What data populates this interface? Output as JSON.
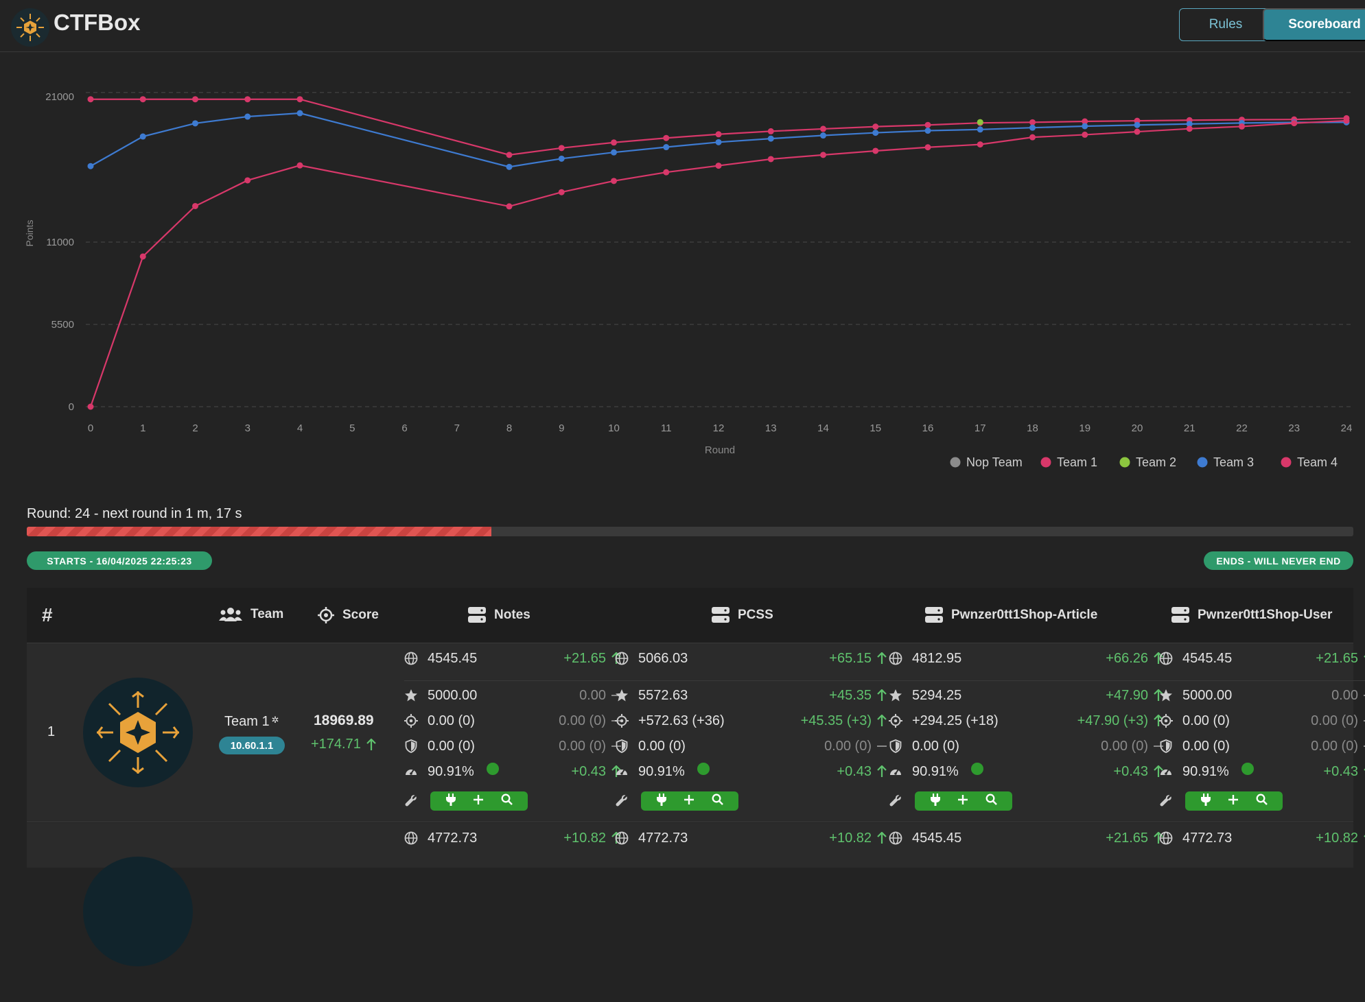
{
  "header": {
    "brand": "CTFBox",
    "rules_label": "Rules",
    "scoreboard_label": "Scoreboard"
  },
  "chart_data": {
    "type": "line",
    "title": "",
    "xlabel": "Round",
    "ylabel": "Points",
    "x": [
      0,
      1,
      2,
      3,
      4,
      8,
      9,
      10,
      11,
      12,
      13,
      14,
      15,
      16,
      17,
      18,
      19,
      20,
      21,
      22,
      23,
      24
    ],
    "xticks": [
      0,
      1,
      2,
      3,
      4,
      5,
      6,
      7,
      8,
      9,
      10,
      11,
      12,
      13,
      14,
      15,
      16,
      17,
      18,
      19,
      20,
      21,
      22,
      23,
      24
    ],
    "yticks": [
      0,
      5500,
      11000,
      21000
    ],
    "ylim": [
      0,
      21500
    ],
    "legend_position": "bottom-right",
    "series": [
      {
        "name": "Nop Team",
        "color": "#8c8c8c",
        "values": null
      },
      {
        "name": "Team 1",
        "color": "#d8386a",
        "values": [
          20550,
          20550,
          20550,
          20550,
          20550,
          16830,
          17290,
          17660,
          17960,
          18210,
          18410,
          18570,
          18720,
          18830,
          18970,
          19010,
          19070,
          19110,
          19150,
          19180,
          19200,
          19280
        ]
      },
      {
        "name": "Team 2",
        "color": "#8cc63f",
        "values": [
          null,
          null,
          null,
          null,
          null,
          null,
          null,
          null,
          null,
          null,
          null,
          null,
          null,
          null,
          19020,
          null,
          null,
          null,
          null,
          null,
          null,
          null
        ]
      },
      {
        "name": "Team 3",
        "color": "#3e7bd1",
        "values": [
          16080,
          18060,
          18940,
          19390,
          19620,
          16030,
          16580,
          17000,
          17350,
          17680,
          17920,
          18130,
          18310,
          18450,
          18530,
          18650,
          18750,
          18830,
          18900,
          18960,
          19000,
          19010
        ]
      },
      {
        "name": "Team 4",
        "color": "#d8386a",
        "values": [
          0,
          10040,
          13410,
          15130,
          16130,
          13390,
          14340,
          15090,
          15670,
          16110,
          16550,
          16830,
          17100,
          17340,
          17530,
          18010,
          18180,
          18380,
          18580,
          18730,
          18950,
          19120
        ]
      }
    ]
  },
  "round": {
    "label": "Round: 24 - next round in 1 m, 17 s",
    "progress": 0.35
  },
  "badges": {
    "start": "STARTS - 16/04/2025 22:25:23",
    "end": "ENDS - WILL NEVER END"
  },
  "table": {
    "headers": {
      "rank": "#",
      "team": "Team",
      "score": "Score",
      "services": [
        "Notes",
        "PCSS",
        "Pwnzer0tt1Shop-Article",
        "Pwnzer0tt1Shop-User"
      ]
    },
    "rows": [
      {
        "rank": "1",
        "team": "Team 1",
        "ip": "10.60.1.1",
        "score": "18969.89",
        "score_delta": "+174.71",
        "services": [
          {
            "total": "4545.45",
            "total_delta": "+21.65",
            "sla": "5000.00",
            "sla_delta": "0.00",
            "attack": "0.00 (0)",
            "attack_delta": "0.00 (0)",
            "defense": "0.00 (0)",
            "defense_delta": "0.00 (0)",
            "uptime": "90.91%",
            "uptime_delta": "+0.43"
          },
          {
            "total": "5066.03",
            "total_delta": "+65.15",
            "sla": "5572.63",
            "sla_delta": "+45.35",
            "attack": "+572.63 (+36)",
            "attack_delta": "+45.35 (+3)",
            "defense": "0.00 (0)",
            "defense_delta": "0.00 (0)",
            "uptime": "90.91%",
            "uptime_delta": "+0.43"
          },
          {
            "total": "4812.95",
            "total_delta": "+66.26",
            "sla": "5294.25",
            "sla_delta": "+47.90",
            "attack": "+294.25 (+18)",
            "attack_delta": "+47.90 (+3)",
            "defense": "0.00 (0)",
            "defense_delta": "0.00 (0)",
            "uptime": "90.91%",
            "uptime_delta": "+0.43"
          },
          {
            "total": "4545.45",
            "total_delta": "+21.65",
            "sla": "5000.00",
            "sla_delta": "0.00",
            "attack": "0.00 (0)",
            "attack_delta": "0.00 (0)",
            "defense": "0.00 (0)",
            "defense_delta": "0.00 (0)",
            "uptime": "90.91%",
            "uptime_delta": "+0.43"
          }
        ]
      },
      {
        "services": [
          {
            "total": "4772.73",
            "total_delta": "+10.82"
          },
          {
            "total": "4772.73",
            "total_delta": "+10.82"
          },
          {
            "total": "4545.45",
            "total_delta": "+21.65"
          },
          {
            "total": "4772.73",
            "total_delta": "+10.82"
          }
        ]
      }
    ]
  }
}
